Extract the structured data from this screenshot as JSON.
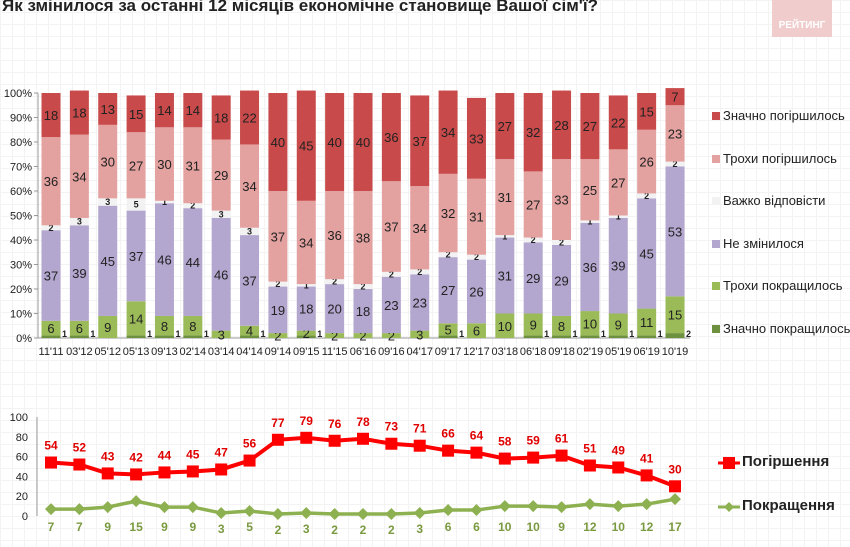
{
  "title": "Як змінилося за останні 12 місяців економічне становище Вашої сім'ї?",
  "logo_text": "РЕЙТИНГ",
  "chart_data": [
    {
      "type": "bar",
      "stacked": true,
      "percent": true,
      "ylim": [
        0,
        100
      ],
      "yticks": [
        "0%",
        "10%",
        "20%",
        "30%",
        "40%",
        "50%",
        "60%",
        "70%",
        "80%",
        "90%",
        "100%"
      ],
      "categories": [
        "11'11",
        "03'12",
        "05'12",
        "05'13",
        "09'13",
        "02'14",
        "03'14",
        "04'14",
        "09'14",
        "09'15",
        "11'15",
        "06'16",
        "09'16",
        "04'17",
        "09'17",
        "12'17",
        "03'18",
        "06'18",
        "09'18",
        "02'19",
        "05'19",
        "06'19",
        "10'19"
      ],
      "legend_position": "right",
      "series": [
        {
          "name": "Значно покращилось",
          "color": "#6e9140",
          "values": [
            1,
            1,
            0,
            1,
            1,
            1,
            0,
            1,
            0,
            1,
            0,
            0,
            0,
            0,
            1,
            0,
            0,
            1,
            1,
            1,
            1,
            1,
            2
          ]
        },
        {
          "name": "Трохи покращилось",
          "color": "#9bbb59",
          "values": [
            6,
            6,
            9,
            14,
            8,
            8,
            3,
            4,
            2,
            2,
            2,
            2,
            2,
            3,
            5,
            6,
            10,
            9,
            8,
            10,
            9,
            11,
            15
          ]
        },
        {
          "name": "Не змінилося",
          "color": "#b3a6cf",
          "values": [
            37,
            39,
            45,
            37,
            46,
            44,
            46,
            37,
            19,
            18,
            20,
            18,
            23,
            23,
            27,
            26,
            31,
            29,
            29,
            36,
            39,
            45,
            53
          ]
        },
        {
          "name": "Важко відповісти",
          "color": "#f2f2f2",
          "values": [
            2,
            3,
            3,
            5,
            1,
            2,
            3,
            3,
            2,
            1,
            2,
            2,
            2,
            2,
            2,
            2,
            1,
            2,
            2,
            1,
            1,
            2,
            2
          ]
        },
        {
          "name": "Трохи погіршилось",
          "color": "#e3a1a0",
          "values": [
            36,
            34,
            30,
            27,
            30,
            31,
            29,
            34,
            37,
            34,
            36,
            38,
            37,
            34,
            32,
            31,
            31,
            27,
            33,
            25,
            27,
            26,
            23
          ]
        },
        {
          "name": "Значно погіршилось",
          "color": "#c94a4a",
          "values": [
            18,
            18,
            13,
            15,
            14,
            14,
            18,
            22,
            40,
            45,
            40,
            40,
            36,
            37,
            34,
            33,
            27,
            32,
            28,
            27,
            22,
            15,
            7
          ]
        }
      ]
    },
    {
      "type": "line",
      "ylim": [
        0,
        100
      ],
      "yticks": [
        "0",
        "20",
        "40",
        "60",
        "80",
        "100"
      ],
      "legend_position": "right",
      "series": [
        {
          "name": "Погіршення",
          "color": "#ff0000",
          "marker": "square",
          "values": [
            54,
            52,
            43,
            42,
            44,
            45,
            47,
            56,
            77,
            79,
            76,
            78,
            73,
            71,
            66,
            64,
            58,
            59,
            61,
            51,
            49,
            41,
            30
          ]
        },
        {
          "name": "Покращення",
          "color": "#8db050",
          "marker": "diamond",
          "values": [
            7,
            7,
            9,
            15,
            9,
            9,
            3,
            5,
            2,
            3,
            2,
            2,
            2,
            3,
            6,
            6,
            10,
            10,
            9,
            12,
            10,
            12,
            17
          ]
        }
      ]
    }
  ]
}
